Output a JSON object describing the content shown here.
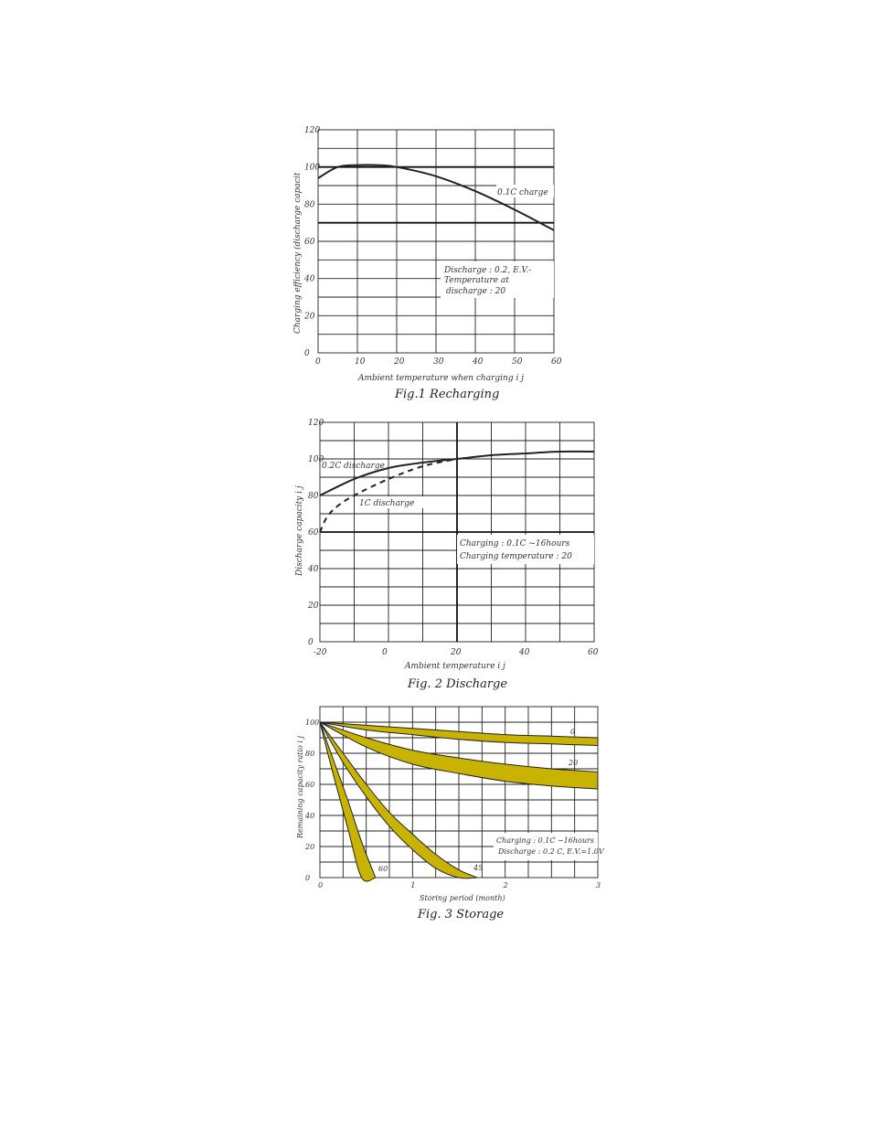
{
  "chart_data": [
    {
      "type": "line",
      "title": "Fig.1 Recharging",
      "xlabel": "Ambient temperature when charging i   j",
      "ylabel": "Charging efficiency (discharge capacit",
      "xlim": [
        0,
        60
      ],
      "ylim": [
        0,
        120
      ],
      "xticks": [
        "0",
        "10",
        "20",
        "30",
        "40",
        "50",
        "60"
      ],
      "yticks": [
        "0",
        "20",
        "40",
        "60",
        "80",
        "100",
        "120"
      ],
      "reference_lines": [
        100,
        70
      ],
      "series": [
        {
          "name": "0.1C charge",
          "x": [
            0,
            5,
            10,
            15,
            20,
            30,
            40,
            50,
            60
          ],
          "y": [
            94,
            100,
            101,
            101,
            100,
            95,
            87,
            77,
            66
          ]
        }
      ],
      "annotations": {
        "line1": "Discharge : 0.2,   E.V.-",
        "line2": "Temperature at",
        "line3": "discharge : 20"
      }
    },
    {
      "type": "line",
      "title": "Fig. 2 Discharge",
      "xlabel": "Ambient temperature i   j",
      "ylabel": "Discharge capacity i   j",
      "xlim": [
        -20,
        60
      ],
      "ylim": [
        0,
        120
      ],
      "xticks": [
        "-20",
        "0",
        "20",
        "40",
        "60"
      ],
      "yticks": [
        "0",
        "20",
        "40",
        "60",
        "80",
        "100",
        "120"
      ],
      "series": [
        {
          "name": "0.2C discharge",
          "style": "solid",
          "x": [
            -20,
            -10,
            0,
            10,
            20,
            30,
            40,
            50,
            60
          ],
          "y": [
            80,
            89,
            95,
            98,
            100,
            102,
            103,
            104,
            104
          ]
        },
        {
          "name": "1C discharge",
          "style": "dashed",
          "x": [
            -20,
            -18,
            -15,
            -10,
            0,
            10,
            20
          ],
          "y": [
            60,
            68,
            74,
            80,
            89,
            96,
            100
          ]
        }
      ],
      "annotations": {
        "line1": "Charging : 0.1C ~16hours",
        "line2": "Charging temperature : 20"
      }
    },
    {
      "type": "area",
      "title": "Fig. 3 Storage",
      "xlabel": "Storing period (month)",
      "ylabel": "Remaining capacity ratio i   j",
      "xlim": [
        0,
        3
      ],
      "ylim": [
        0,
        110
      ],
      "xticks": [
        "0",
        "1",
        "2",
        "3"
      ],
      "yticks": [
        "0",
        "20",
        "40",
        "60",
        "80",
        "100"
      ],
      "series": [
        {
          "name": "0",
          "x": [
            0,
            0.5,
            1,
            1.5,
            2,
            2.5,
            3
          ],
          "upper": [
            100,
            98,
            96,
            94,
            92,
            91,
            90
          ],
          "lower": [
            100,
            95,
            92,
            89,
            87,
            86,
            85
          ]
        },
        {
          "name": "20",
          "x": [
            0,
            0.5,
            1,
            1.5,
            2,
            2.5,
            3
          ],
          "upper": [
            100,
            90,
            82,
            77,
            73,
            70,
            68
          ],
          "lower": [
            100,
            84,
            73,
            67,
            62,
            59,
            57
          ]
        },
        {
          "name": "45",
          "x": [
            0,
            0.25,
            0.5,
            0.75,
            1,
            1.25,
            1.5,
            1.7
          ],
          "upper": [
            100,
            80,
            60,
            42,
            28,
            15,
            5,
            0
          ],
          "lower": [
            100,
            74,
            52,
            33,
            18,
            6,
            0,
            0
          ]
        },
        {
          "name": "60",
          "x": [
            0,
            0.15,
            0.3,
            0.45,
            0.6
          ],
          "upper": [
            100,
            75,
            50,
            23,
            0
          ],
          "lower": [
            100,
            65,
            32,
            0,
            0
          ]
        }
      ],
      "annotations": {
        "line1": "Charging : 0.1C ~16hours",
        "line2": "Discharge : 0.2 C,   E.V.=1.0V"
      }
    }
  ]
}
